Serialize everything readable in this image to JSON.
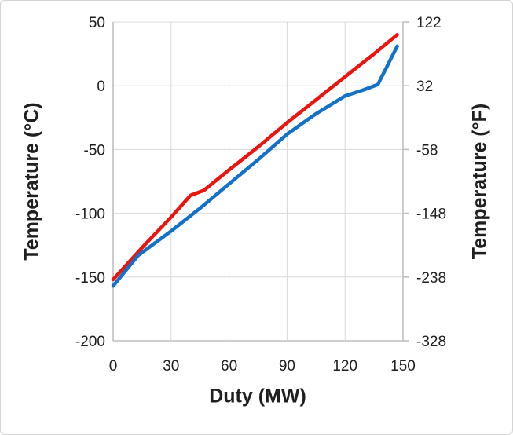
{
  "chart_data": {
    "type": "line",
    "title": "",
    "xlabel": "Duty (MW)",
    "ylabel_left": "Temperature (°C)",
    "ylabel_right": "Temperature (°F)",
    "xlim": [
      0,
      150
    ],
    "ylim_left": [
      -200,
      50
    ],
    "ylim_right": [
      -328,
      122
    ],
    "x_ticks": [
      0,
      30,
      60,
      90,
      120,
      150
    ],
    "y_ticks_left": [
      50,
      0,
      -50,
      -100,
      -150,
      -200
    ],
    "y_ticks_right": [
      122,
      32,
      -58,
      -148,
      -238,
      -328
    ],
    "grid": true,
    "legend": "none",
    "series": [
      {
        "name": "red-line",
        "color": "#eb140f",
        "axis": "left",
        "x": [
          0,
          15,
          30,
          40,
          47,
          60,
          75,
          90,
          105,
          120,
          135,
          147
        ],
        "y": [
          -152,
          -127,
          -103,
          -86,
          -82,
          -66,
          -48,
          -29,
          -11,
          7,
          25,
          40
        ]
      },
      {
        "name": "blue-line",
        "color": "#1271c8",
        "axis": "left",
        "x": [
          0,
          13,
          30,
          45,
          60,
          75,
          90,
          105,
          120,
          130,
          137,
          147
        ],
        "y": [
          -157,
          -133,
          -114,
          -96,
          -77,
          -58,
          -38,
          -22,
          -8,
          -3,
          1,
          31
        ]
      }
    ],
    "colors": {
      "gridline": "#d9d9d9",
      "axis_line": "#bfbfbf",
      "tick_label": "#1f1f1f",
      "axis_title": "#1f1f1f",
      "background": "#ffffff"
    }
  }
}
